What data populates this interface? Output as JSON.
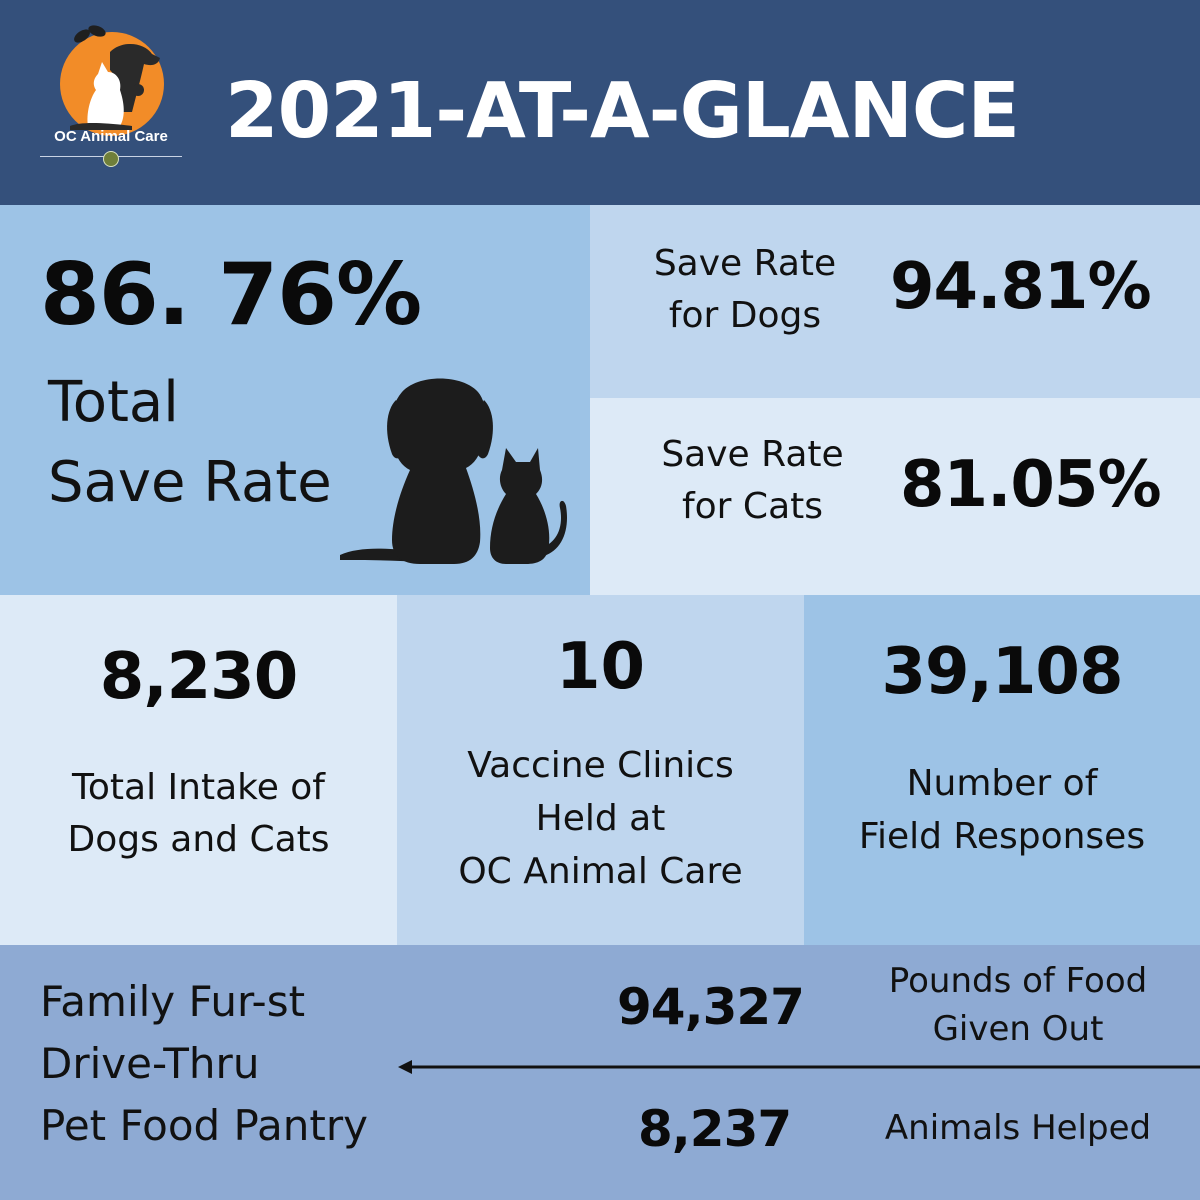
{
  "header": {
    "title": "2021-AT-A-GLANCE",
    "logo_text": "OC Animal Care"
  },
  "total_save_rate": {
    "value": "86. 76%",
    "label_line1": "Total",
    "label_line2": "Save Rate"
  },
  "dogs_save_rate": {
    "label_line1": "Save Rate",
    "label_line2": "for Dogs",
    "value": "94.81%"
  },
  "cats_save_rate": {
    "label_line1": "Save Rate",
    "label_line2": "for Cats",
    "value": "81.05%"
  },
  "intake": {
    "value": "8,230",
    "label_line1": "Total Intake of",
    "label_line2": "Dogs and Cats"
  },
  "vaccine_clinics": {
    "value": "10",
    "label_line1": "Vaccine Clinics",
    "label_line2": "Held at",
    "label_line3": "OC Animal Care"
  },
  "field_responses": {
    "value": "39,108",
    "label_line1": "Number of",
    "label_line2": "Field Responses"
  },
  "pantry": {
    "label_line1": "Family Fur-st",
    "label_line2": "Drive-Thru",
    "label_line3": "Pet Food Pantry",
    "food_value": "94,327",
    "food_label_line1": "Pounds of Food",
    "food_label_line2": "Given Out",
    "animals_value": "8,237",
    "animals_label": "Animals Helped"
  },
  "colors": {
    "header_bg": "#34507b",
    "medium_blue": "#9dc3e6",
    "light_blue": "#bfd6ee",
    "pale_blue": "#ddeaf7",
    "pantry_bg": "#8eaad3",
    "logo_orange": "#f28c28"
  },
  "icons": [
    "dog-cat-logo-icon",
    "county-seal-icon",
    "dog-cat-silhouette-icon",
    "arrow-left-icon"
  ]
}
